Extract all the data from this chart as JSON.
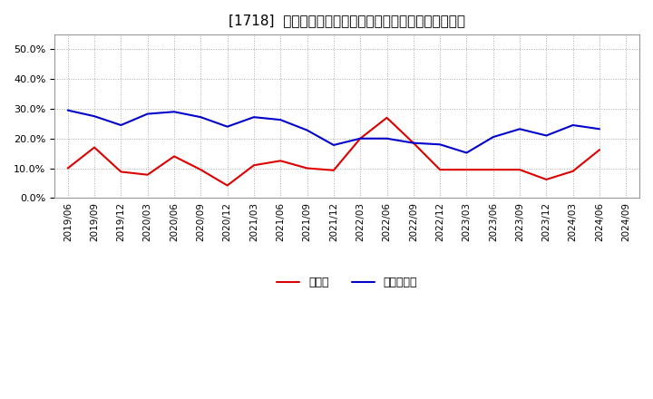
{
  "title": "[1718]  現頶金、有利子負債の総資産に対する比率の推移",
  "x_labels": [
    "2019/06",
    "2019/09",
    "2019/12",
    "2020/03",
    "2020/06",
    "2020/09",
    "2020/12",
    "2021/03",
    "2021/06",
    "2021/09",
    "2021/12",
    "2022/03",
    "2022/06",
    "2022/09",
    "2022/12",
    "2023/03",
    "2023/06",
    "2023/09",
    "2023/12",
    "2024/03",
    "2024/06",
    "2024/09"
  ],
  "cash": [
    0.1,
    0.17,
    0.088,
    0.078,
    0.14,
    0.095,
    0.042,
    0.11,
    0.125,
    0.1,
    0.093,
    0.2,
    0.27,
    0.185,
    0.095,
    0.095,
    0.095,
    0.095,
    0.062,
    0.09,
    0.162,
    null
  ],
  "debt": [
    0.295,
    0.275,
    0.245,
    0.283,
    0.29,
    0.272,
    0.24,
    0.272,
    0.263,
    0.228,
    0.178,
    0.2,
    0.2,
    0.185,
    0.18,
    0.152,
    0.205,
    0.232,
    0.21,
    0.245,
    0.232,
    null
  ],
  "cash_color": "#dd0000",
  "debt_color": "#0000cc",
  "bg_color": "#ffffff",
  "grid_color": "#aaaaaa",
  "ylim": [
    0.0,
    0.55
  ],
  "yticks": [
    0.0,
    0.1,
    0.2,
    0.3,
    0.4,
    0.5
  ],
  "legend_cash": "現頶金",
  "legend_debt": "有利子負債"
}
